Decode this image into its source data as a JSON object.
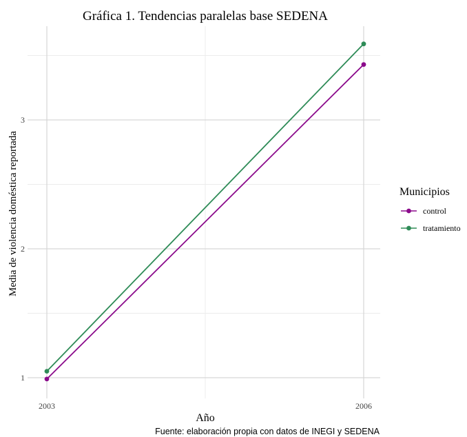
{
  "chart_data": {
    "type": "line",
    "title": "Gráfica 1. Tendencias paralelas base SEDENA",
    "xlabel": "Año",
    "ylabel": "Media de violencia doméstica reportada",
    "caption": "Fuente: elaboración propia con datos de INEGI y SEDENA",
    "x": [
      2003,
      2006
    ],
    "x_ticks": [
      "2003",
      "2006"
    ],
    "y_ticks": [
      "1",
      "2",
      "3"
    ],
    "xlim": [
      2003,
      2006
    ],
    "ylim": [
      1,
      3.6
    ],
    "grid": true,
    "legend": {
      "title": "Municipios",
      "position": "right"
    },
    "series": [
      {
        "name": "control",
        "color": "#8b0a8b",
        "values": [
          0.99,
          3.43
        ]
      },
      {
        "name": "tratamiento",
        "color": "#2e8b57",
        "values": [
          1.05,
          3.59
        ]
      }
    ]
  }
}
